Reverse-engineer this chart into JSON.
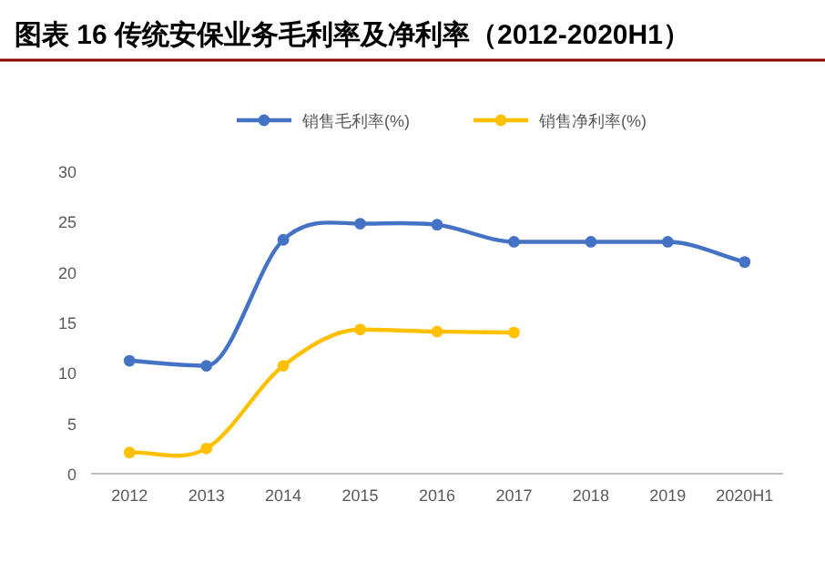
{
  "chart_data": {
    "type": "line",
    "title": "图表 16 传统安保业务毛利率及净利率（2012-2020H1）",
    "categories": [
      "2012",
      "2013",
      "2014",
      "2015",
      "2016",
      "2017",
      "2018",
      "2019",
      "2020H1"
    ],
    "series": [
      {
        "name": "销售毛利率(%)",
        "color": "#4472c4",
        "values": [
          11.2,
          10.7,
          23.2,
          24.8,
          24.7,
          23.0,
          23.0,
          23.0,
          21.0
        ]
      },
      {
        "name": "销售净利率(%)",
        "color": "#ffc000",
        "values": [
          2.1,
          2.5,
          10.7,
          14.3,
          14.1,
          14.0,
          null,
          null,
          null
        ]
      }
    ],
    "ylim": [
      0,
      30
    ],
    "yticks": [
      0,
      5,
      10,
      15,
      20,
      25,
      30
    ],
    "grid": false,
    "legend": "top",
    "marker": "circle",
    "line_style": "solid"
  }
}
